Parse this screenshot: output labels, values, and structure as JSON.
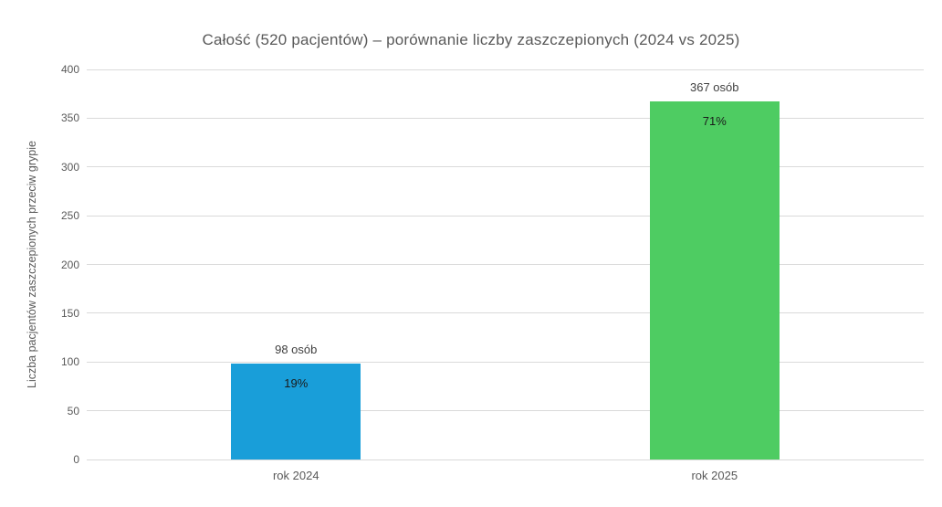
{
  "chart_data": {
    "type": "bar",
    "title": "Całość (520 pacjentów) – porównanie liczby zaszczepionych (2024 vs 2025)",
    "xlabel": "",
    "ylabel": "Liczba pacjentów zaszczepionych przeciw grypie",
    "categories": [
      "rok 2024",
      "rok 2025"
    ],
    "values": [
      98,
      367
    ],
    "bar_value_labels": [
      "98 osób",
      "367 osób"
    ],
    "bar_pct_labels": [
      "19%",
      "71%"
    ],
    "bar_colors": [
      "#199ed9",
      "#4ecc62"
    ],
    "ylim": [
      0,
      400
    ],
    "yticks": [
      0,
      50,
      100,
      150,
      200,
      250,
      300,
      350,
      400
    ],
    "grid": true,
    "legend_position": "none",
    "colors": {
      "gridline": "#dadada",
      "axis_text": "#595959",
      "title_text": "#595959",
      "data_label_text": "#404040",
      "background": "#ffffff"
    }
  }
}
